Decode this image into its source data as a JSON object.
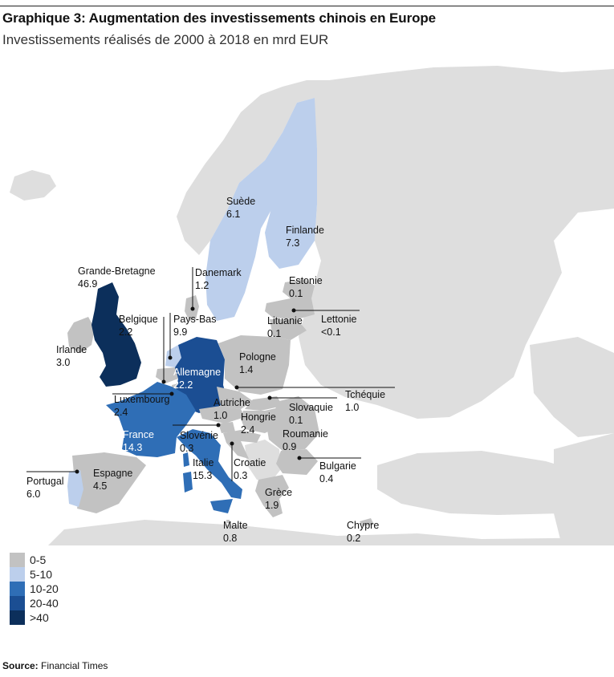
{
  "title": "Graphique 3: Augmentation des investissements chinois en Europe",
  "subtitle": "Investissements réalisés de 2000 à 2018 en mrd EUR",
  "colors": {
    "background_land": "#dedede",
    "sea": "#ffffff",
    "class_0_5": "#c2c2c2",
    "class_5_10": "#bccfec",
    "class_10_20": "#2f6eb6",
    "class_20_40": "#1b4e93",
    "class_40_plus": "#0c2f5b"
  },
  "legend": [
    {
      "label": "0-5",
      "color": "#c2c2c2"
    },
    {
      "label": "5-10",
      "color": "#bccfec"
    },
    {
      "label": "10-20",
      "color": "#2f6eb6"
    },
    {
      "label": "20-40",
      "color": "#1b4e93"
    },
    {
      "label": ">40",
      "color": "#0c2f5b"
    }
  ],
  "countries": {
    "grande_bretagne": {
      "name": "Grande-Bretagne",
      "value": "46.9"
    },
    "irlande": {
      "name": "Irlande",
      "value": "3.0"
    },
    "belgique": {
      "name": "Belgique",
      "value": "2.2"
    },
    "pays_bas": {
      "name": "Pays-Bas",
      "value": "9.9"
    },
    "danemark": {
      "name": "Danemark",
      "value": "1.2"
    },
    "suede": {
      "name": "Suède",
      "value": "6.1"
    },
    "finlande": {
      "name": "Finlande",
      "value": "7.3"
    },
    "estonie": {
      "name": "Estonie",
      "value": "0.1"
    },
    "lettonie": {
      "name": "Lettonie",
      "value": "<0.1"
    },
    "lituanie": {
      "name": "Lituanie",
      "value": "0.1"
    },
    "pologne": {
      "name": "Pologne",
      "value": "1.4"
    },
    "allemagne": {
      "name": "Allemagne",
      "value": "22.2"
    },
    "luxembourg": {
      "name": "Luxembourg",
      "value": "2.4"
    },
    "tcheque": {
      "name": "Tchéquie",
      "value": "1.0"
    },
    "autriche": {
      "name": "Autriche",
      "value": "1.0"
    },
    "slovaquie": {
      "name": "Slovaquie",
      "value": "0.1"
    },
    "hongrie": {
      "name": "Hongrie",
      "value": "2.4"
    },
    "france": {
      "name": "France",
      "value": "14.3"
    },
    "slovenie": {
      "name": "Slovénie",
      "value": "0.3"
    },
    "roumanie": {
      "name": "Roumanie",
      "value": "0.9"
    },
    "portugal": {
      "name": "Portugal",
      "value": "6.0"
    },
    "espagne": {
      "name": "Espagne",
      "value": "4.5"
    },
    "italie": {
      "name": "Italie",
      "value": "15.3"
    },
    "croatie": {
      "name": "Croatie",
      "value": "0.3"
    },
    "bulgarie": {
      "name": "Bulgarie",
      "value": "0.4"
    },
    "grece": {
      "name": "Grèce",
      "value": "1.9"
    },
    "malte": {
      "name": "Malte",
      "value": "0.8"
    },
    "chypre": {
      "name": "Chypre",
      "value": "0.2"
    }
  },
  "source": {
    "label": "Source:",
    "text": "Financial Times"
  }
}
